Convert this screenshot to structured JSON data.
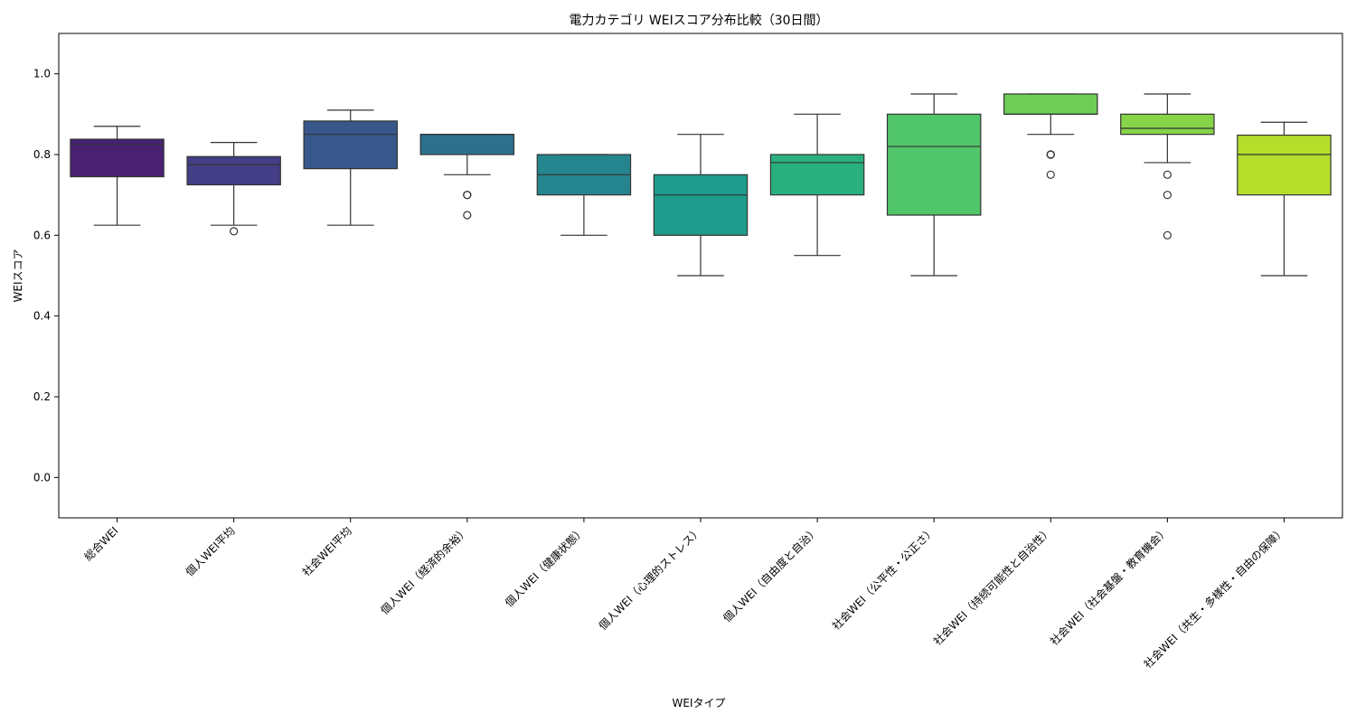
{
  "chart_data": {
    "type": "box",
    "title": "電力カテゴリ WEIスコア分布比較（30日間）",
    "xlabel": "WEIタイプ",
    "ylabel": "WEIスコア",
    "ylim": [
      -0.1,
      1.1
    ],
    "yticks": [
      "0.0",
      "0.2",
      "0.4",
      "0.6",
      "0.8",
      "1.0"
    ],
    "grid": false,
    "legend": "none",
    "categories": [
      "総合WEI",
      "個人WEI平均",
      "社会WEI平均",
      "個人WEI（経済的余裕）",
      "個人WEI（健康状態）",
      "個人WEI（心理的ストレス）",
      "個人WEI（自由度と自治）",
      "社会WEI（公平性・公正さ）",
      "社会WEI（持続可能性と自治性）",
      "社会WEI（社会基盤・教育機会）",
      "社会WEI（共生・多様性・自由の保障）"
    ],
    "colors": [
      "#482173",
      "#433e85",
      "#38588c",
      "#2d708e",
      "#25858e",
      "#1e9b8a",
      "#2ab07f",
      "#51c56a",
      "#6ece58",
      "#86d549",
      "#b5de2b"
    ],
    "boxes": [
      {
        "whislo": 0.625,
        "q1": 0.745,
        "med": 0.825,
        "q3": 0.838,
        "whishi": 0.87,
        "fliers": []
      },
      {
        "whislo": 0.625,
        "q1": 0.725,
        "med": 0.775,
        "q3": 0.795,
        "whishi": 0.83,
        "fliers": [
          0.61
        ]
      },
      {
        "whislo": 0.625,
        "q1": 0.765,
        "med": 0.85,
        "q3": 0.883,
        "whishi": 0.91,
        "fliers": []
      },
      {
        "whislo": 0.75,
        "q1": 0.8,
        "med": 0.85,
        "q3": 0.85,
        "whishi": 0.85,
        "fliers": [
          0.7,
          0.7,
          0.65
        ]
      },
      {
        "whislo": 0.6,
        "q1": 0.7,
        "med": 0.75,
        "q3": 0.8,
        "whishi": 0.8,
        "fliers": []
      },
      {
        "whislo": 0.5,
        "q1": 0.6,
        "med": 0.7,
        "q3": 0.75,
        "whishi": 0.85,
        "fliers": []
      },
      {
        "whislo": 0.55,
        "q1": 0.7,
        "med": 0.78,
        "q3": 0.8,
        "whishi": 0.9,
        "fliers": []
      },
      {
        "whislo": 0.5,
        "q1": 0.65,
        "med": 0.82,
        "q3": 0.9,
        "whishi": 0.95,
        "fliers": []
      },
      {
        "whislo": 0.85,
        "q1": 0.9,
        "med": 0.9,
        "q3": 0.95,
        "whishi": 0.95,
        "fliers": [
          0.8,
          0.8,
          0.8,
          0.75
        ]
      },
      {
        "whislo": 0.78,
        "q1": 0.85,
        "med": 0.865,
        "q3": 0.9,
        "whishi": 0.95,
        "fliers": [
          0.75,
          0.7,
          0.6
        ]
      },
      {
        "whislo": 0.5,
        "q1": 0.7,
        "med": 0.8,
        "q3": 0.848,
        "whishi": 0.88,
        "fliers": []
      }
    ]
  }
}
